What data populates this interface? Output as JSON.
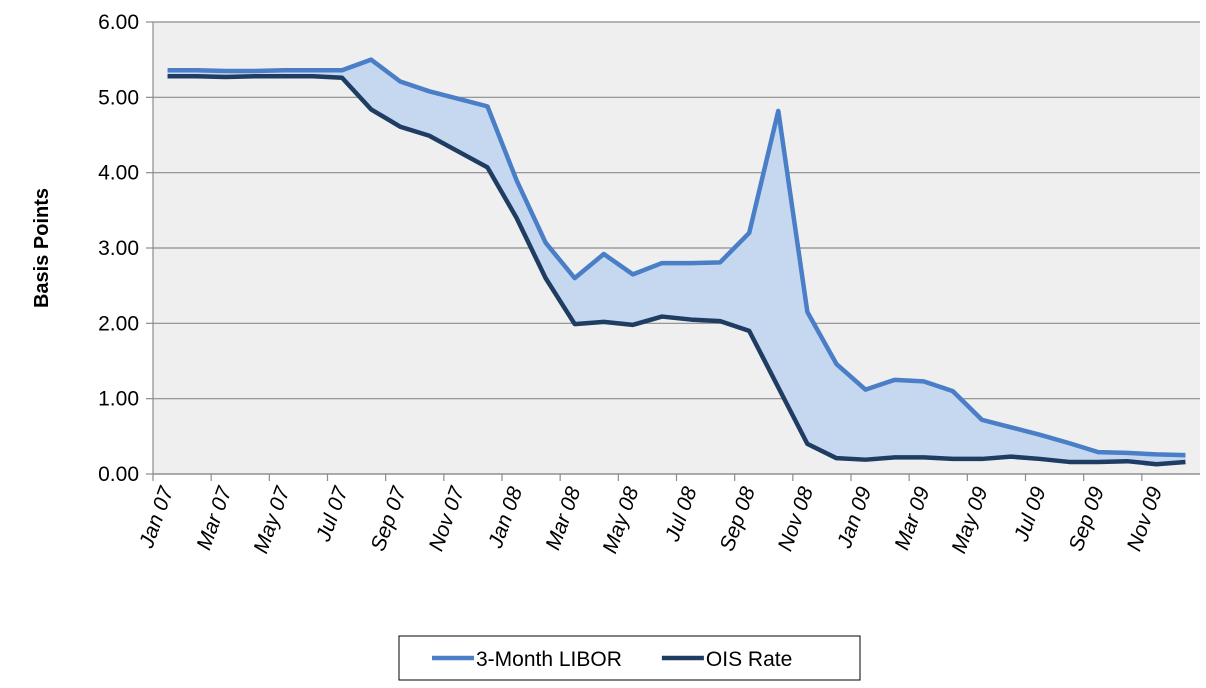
{
  "chart_data": {
    "type": "line",
    "ylabel": "Basis Points",
    "categories": [
      "Jan 07",
      null,
      "Mar 07",
      null,
      "May 07",
      null,
      "Jul 07",
      null,
      "Sep 07",
      null,
      "Nov 07",
      null,
      "Jan 08",
      null,
      "Mar 08",
      null,
      "May 08",
      null,
      "Jul 08",
      null,
      "Sep 08",
      null,
      "Nov 08",
      null,
      "Jan 09",
      null,
      "Mar 09",
      null,
      "May 09",
      null,
      "Jul 09",
      null,
      "Sep 09",
      null,
      "Nov 09",
      null
    ],
    "series": [
      {
        "name": "3-Month LIBOR",
        "color": "#4a7ec7",
        "values": [
          5.36,
          5.36,
          5.35,
          5.35,
          5.36,
          5.36,
          5.36,
          5.5,
          5.21,
          5.08,
          4.98,
          4.88,
          3.9,
          3.07,
          2.6,
          2.92,
          2.65,
          2.8,
          2.8,
          2.81,
          3.2,
          4.82,
          2.15,
          1.46,
          1.12,
          1.25,
          1.23,
          1.1,
          0.72,
          0.62,
          0.52,
          0.41,
          0.29,
          0.28,
          0.26,
          0.25
        ]
      },
      {
        "name": "OIS Rate",
        "color": "#1f3d63",
        "values": [
          5.28,
          5.28,
          5.27,
          5.28,
          5.28,
          5.28,
          5.26,
          4.84,
          4.61,
          4.49,
          4.28,
          4.07,
          3.4,
          2.6,
          1.99,
          2.02,
          1.98,
          2.09,
          2.05,
          2.03,
          1.9,
          1.15,
          0.4,
          0.21,
          0.19,
          0.22,
          0.22,
          0.2,
          0.2,
          0.23,
          0.2,
          0.16,
          0.16,
          0.17,
          0.13,
          0.16
        ]
      }
    ],
    "fill_between": "#c5d8f0",
    "ylim": [
      0,
      6
    ],
    "yticks": [
      {
        "value": 0,
        "label": "0.00"
      },
      {
        "value": 1,
        "label": "1.00"
      },
      {
        "value": 2,
        "label": "2.00"
      },
      {
        "value": 3,
        "label": "3.00"
      },
      {
        "value": 4,
        "label": "4.00"
      },
      {
        "value": 5,
        "label": "5.00"
      },
      {
        "value": 6,
        "label": "6.00"
      }
    ],
    "grid": true,
    "legend": "bottom"
  }
}
